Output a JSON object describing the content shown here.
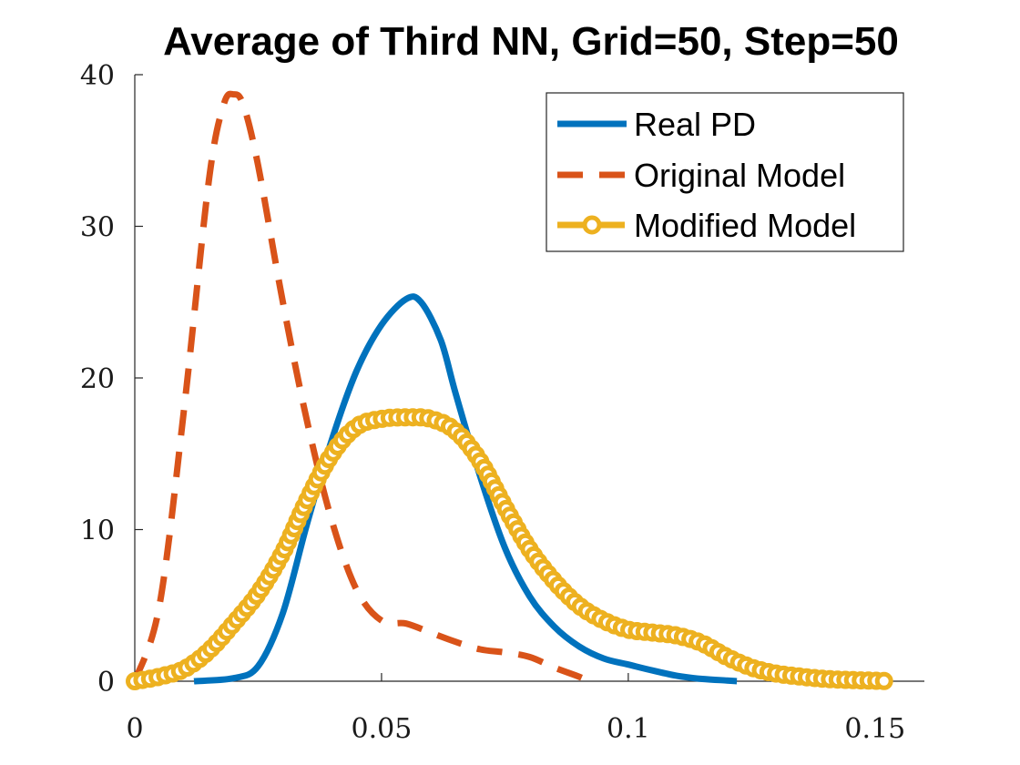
{
  "chart_data": {
    "type": "line",
    "title": "Average of Third NN, Grid=50, Step=50",
    "xlabel": "",
    "ylabel": "",
    "xlim": [
      0,
      0.16
    ],
    "ylim": [
      0,
      40
    ],
    "xticks": [
      0,
      0.05,
      0.1,
      0.15
    ],
    "xtick_labels": [
      "0",
      "0.05",
      "0.1",
      "0.15"
    ],
    "yticks": [
      0,
      10,
      20,
      30,
      40
    ],
    "ytick_labels": [
      "0",
      "10",
      "20",
      "30",
      "40"
    ],
    "grid": false,
    "legend_position": "top-right",
    "series": [
      {
        "name": "Real PD",
        "color": "#0072BD",
        "style": "solid",
        "x": [
          0.012,
          0.02,
          0.025,
          0.03,
          0.035,
          0.04,
          0.045,
          0.05,
          0.055,
          0.058,
          0.062,
          0.065,
          0.07,
          0.075,
          0.08,
          0.085,
          0.09,
          0.095,
          0.1,
          0.105,
          0.11,
          0.115,
          0.12,
          0.122
        ],
        "y": [
          0.0,
          0.2,
          1.0,
          4.5,
          10.5,
          16.0,
          20.5,
          23.5,
          25.2,
          25.0,
          22.5,
          19.0,
          13.5,
          8.8,
          5.6,
          3.6,
          2.3,
          1.5,
          1.1,
          0.7,
          0.35,
          0.15,
          0.05,
          0.0
        ]
      },
      {
        "name": "Original Model",
        "color": "#D95319",
        "style": "dashed",
        "x": [
          0.0,
          0.005,
          0.01,
          0.015,
          0.018,
          0.02,
          0.022,
          0.025,
          0.03,
          0.035,
          0.04,
          0.045,
          0.05,
          0.055,
          0.06,
          0.065,
          0.07,
          0.075,
          0.08,
          0.085,
          0.09,
          0.092
        ],
        "y": [
          0.0,
          5.0,
          18.0,
          33.0,
          38.0,
          38.7,
          38.0,
          34.0,
          25.0,
          17.0,
          10.5,
          6.0,
          4.0,
          3.8,
          3.2,
          2.6,
          2.1,
          1.9,
          1.6,
          0.9,
          0.3,
          0.0
        ]
      },
      {
        "name": "Modified Model",
        "color": "#EDB120",
        "style": "dashed-circle",
        "x": [
          0.0,
          0.005,
          0.01,
          0.015,
          0.02,
          0.025,
          0.03,
          0.035,
          0.04,
          0.045,
          0.05,
          0.055,
          0.06,
          0.065,
          0.07,
          0.075,
          0.08,
          0.085,
          0.09,
          0.095,
          0.1,
          0.105,
          0.11,
          0.115,
          0.12,
          0.125,
          0.13,
          0.135,
          0.14,
          0.145,
          0.15,
          0.153
        ],
        "y": [
          0.0,
          0.3,
          0.8,
          2.0,
          3.8,
          5.8,
          8.5,
          12.0,
          15.0,
          16.8,
          17.3,
          17.4,
          17.3,
          16.5,
          14.5,
          11.5,
          8.7,
          6.6,
          5.0,
          4.0,
          3.4,
          3.2,
          3.0,
          2.5,
          1.6,
          0.9,
          0.5,
          0.3,
          0.15,
          0.08,
          0.03,
          0.0
        ]
      }
    ]
  }
}
